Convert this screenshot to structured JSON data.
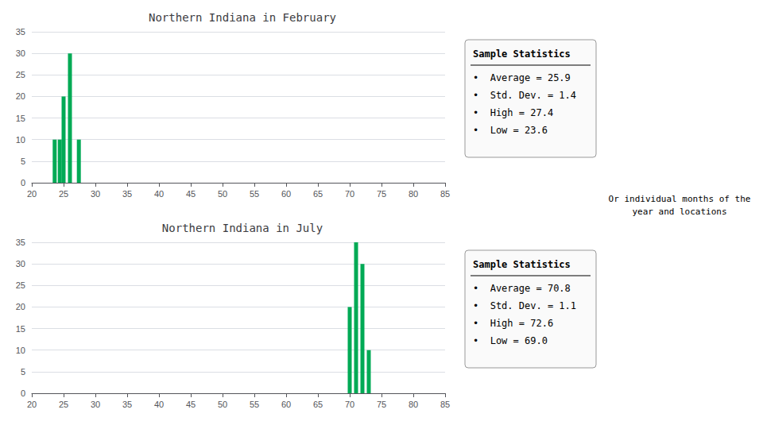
{
  "chart_data": [
    {
      "type": "bar",
      "title": "Northern Indiana in February",
      "x": [
        23.6,
        24.4,
        25.0,
        26.0,
        27.4
      ],
      "values": [
        10,
        10,
        20,
        30,
        10
      ],
      "color": "#00aa55",
      "xlim": [
        20,
        85
      ],
      "xticks": [
        20,
        25,
        30,
        35,
        40,
        45,
        50,
        55,
        60,
        65,
        70,
        75,
        80,
        85
      ],
      "ylim": [
        0,
        35
      ],
      "yticks": [
        0,
        5,
        10,
        15,
        20,
        25,
        30,
        35
      ],
      "grid": true,
      "annotations": [
        "Sample Statistics",
        "•  Average = 25.9",
        "•  Std. Dev. = 1.4",
        "•  High = 27.4",
        "•  Low = 23.6"
      ]
    },
    {
      "type": "bar",
      "title": "Northern Indiana in July",
      "x": [
        70.0,
        71.0,
        72.0,
        73.0
      ],
      "values": [
        20,
        35,
        30,
        10
      ],
      "color": "#00aa55",
      "xlim": [
        20,
        85
      ],
      "xticks": [
        20,
        25,
        30,
        35,
        40,
        45,
        50,
        55,
        60,
        65,
        70,
        75,
        80,
        85
      ],
      "ylim": [
        0,
        35
      ],
      "yticks": [
        0,
        5,
        10,
        15,
        20,
        25,
        30,
        35
      ],
      "grid": true,
      "annotations": [
        "Sample Statistics",
        "•  Average = 70.8",
        "•  Std. Dev. = 1.1",
        "•  High = 72.6",
        "•  Low = 69.0"
      ]
    }
  ],
  "annotations": [
    "Or individual months of the\nyear and locations"
  ]
}
